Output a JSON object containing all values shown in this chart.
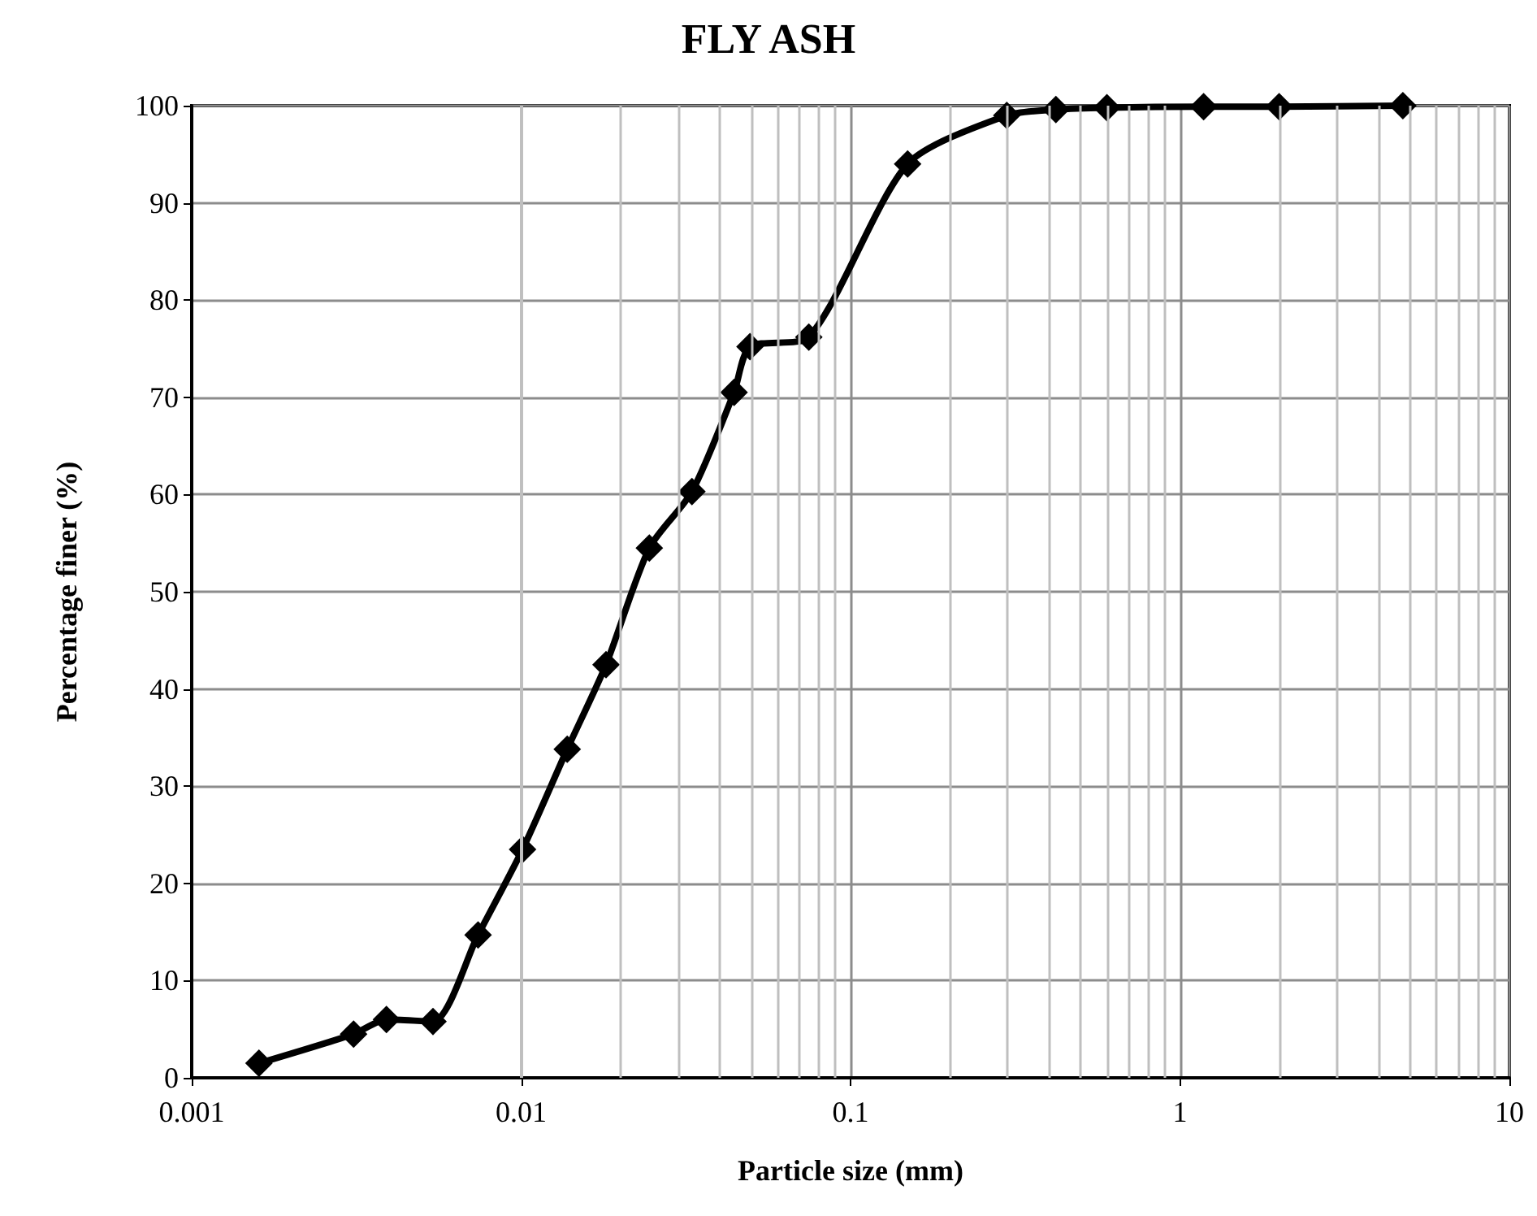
{
  "chart_data": {
    "type": "line",
    "title": "FLY ASH",
    "xlabel": "Particle size (mm)",
    "ylabel": "Percentage finer (%)",
    "x": [
      0.0016,
      0.0031,
      0.0039,
      0.0054,
      0.0074,
      0.0101,
      0.0138,
      0.0181,
      0.0245,
      0.033,
      0.0443,
      0.0495,
      0.0747,
      0.149,
      0.298,
      0.42,
      0.6,
      1.18,
      2,
      4.75
    ],
    "series": [
      {
        "color": "#000000",
        "values": [
          1.5,
          4.5,
          6.0,
          5.8,
          14.7,
          23.5,
          33.8,
          42.5,
          54.5,
          60.3,
          70.5,
          75.2,
          76.2,
          94.0,
          99.0,
          99.6,
          99.8,
          99.9,
          99.9,
          100
        ]
      }
    ],
    "xlim": [
      0.001,
      10
    ],
    "xticks": [
      0.001,
      0.01,
      0.1,
      1,
      10
    ],
    "ylim": [
      0,
      100
    ],
    "yticks": [
      0,
      10,
      20,
      30,
      40,
      50,
      60,
      70,
      80,
      90,
      100
    ],
    "log": "x",
    "grid": true,
    "marker": "diamond",
    "line_style": "solid"
  }
}
